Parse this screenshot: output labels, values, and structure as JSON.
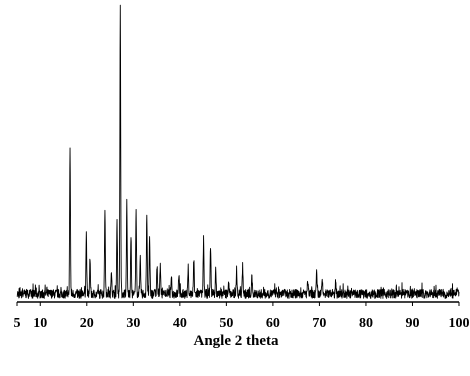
{
  "chart_data": {
    "type": "line",
    "title": "",
    "xlabel": "Angle 2 theta",
    "ylabel": "",
    "xlim": [
      5,
      100
    ],
    "ylim": [
      0,
      100
    ],
    "x_ticks": [
      5,
      10,
      20,
      30,
      40,
      50,
      60,
      70,
      80,
      90,
      100
    ],
    "x_tick_labels": [
      "5",
      "10",
      "20",
      "30",
      "40",
      "50",
      "60",
      "70",
      "80",
      "90",
      "100"
    ],
    "grid": false,
    "legend": "none",
    "line_color": "#000000",
    "background": 2.5,
    "noise": 1.6,
    "peaks": [
      {
        "x": 16.4,
        "y": 51
      },
      {
        "x": 19.9,
        "y": 21
      },
      {
        "x": 20.7,
        "y": 11
      },
      {
        "x": 23.9,
        "y": 30
      },
      {
        "x": 25.3,
        "y": 9
      },
      {
        "x": 26.5,
        "y": 25
      },
      {
        "x": 27.2,
        "y": 100
      },
      {
        "x": 28.6,
        "y": 30
      },
      {
        "x": 29.5,
        "y": 20
      },
      {
        "x": 30.6,
        "y": 29
      },
      {
        "x": 31.5,
        "y": 12
      },
      {
        "x": 32.9,
        "y": 28
      },
      {
        "x": 33.5,
        "y": 19
      },
      {
        "x": 35.1,
        "y": 10
      },
      {
        "x": 35.8,
        "y": 11
      },
      {
        "x": 38.2,
        "y": 5
      },
      {
        "x": 39.8,
        "y": 7
      },
      {
        "x": 41.8,
        "y": 8
      },
      {
        "x": 43.0,
        "y": 12
      },
      {
        "x": 45.1,
        "y": 19
      },
      {
        "x": 46.6,
        "y": 17
      },
      {
        "x": 47.7,
        "y": 8
      },
      {
        "x": 50.5,
        "y": 5
      },
      {
        "x": 52.2,
        "y": 9
      },
      {
        "x": 53.5,
        "y": 10
      },
      {
        "x": 55.5,
        "y": 5
      },
      {
        "x": 67.5,
        "y": 4
      },
      {
        "x": 69.4,
        "y": 7
      },
      {
        "x": 70.6,
        "y": 5
      },
      {
        "x": 73.5,
        "y": 3
      }
    ]
  }
}
